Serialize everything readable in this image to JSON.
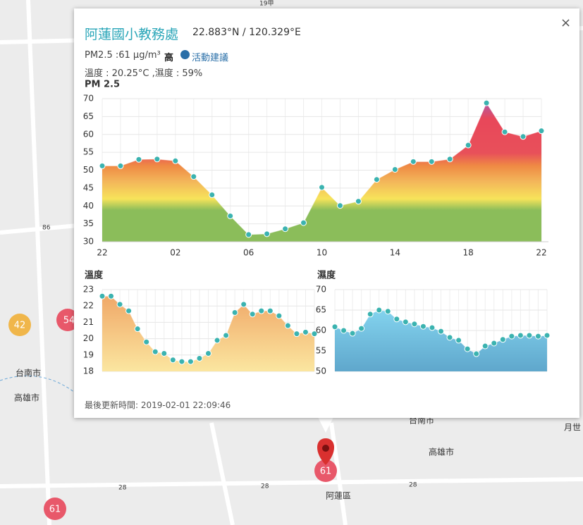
{
  "map": {
    "markers": [
      "42",
      "54",
      "61"
    ],
    "pin": "61",
    "labels": [
      "台南市",
      "高雄市",
      "阿蓮區",
      "台南市",
      "高雄市",
      "月世",
      "28",
      "28",
      "28",
      "86",
      "19甲"
    ]
  },
  "popup": {
    "title": "阿蓮國小教務處",
    "coords": "22.883°N / 120.329°E",
    "close": "×",
    "pm_text": "PM2.5 :61 μg/m³",
    "level": "高",
    "advice": "活動建議",
    "weather": "溫度 : 20.25°C ,濕度 : 59%",
    "updated": "最後更新時間: 2019-02-01 22:09:46"
  },
  "chart_data": [
    {
      "type": "area",
      "title": "PM 2.5",
      "color": "#3bb3b0",
      "categories": [
        "22",
        null,
        null,
        null,
        "02",
        null,
        null,
        null,
        "06",
        null,
        null,
        null,
        "10",
        null,
        null,
        null,
        "14",
        null,
        null,
        null,
        "18",
        null,
        null,
        null,
        "22"
      ],
      "values": [
        51.2,
        51.2,
        53,
        53.1,
        52.6,
        48.2,
        43.1,
        37.2,
        32,
        32.2,
        33.6,
        35.3,
        45.2,
        40.1,
        41.3,
        47.4,
        50.2,
        52.4,
        52.4,
        53.1,
        57,
        68.8,
        60.7,
        59.4,
        61
      ],
      "ylim": [
        30,
        70
      ],
      "yticks": [
        30,
        35,
        40,
        45,
        50,
        55,
        60,
        65,
        70
      ],
      "grid": true
    },
    {
      "type": "area",
      "title": "溫度",
      "color": "#3bb3b0",
      "values": [
        22.6,
        22.6,
        22.1,
        21.7,
        20.6,
        19.8,
        19.2,
        19.1,
        18.7,
        18.6,
        18.6,
        18.8,
        19.1,
        19.9,
        20.2,
        21.6,
        22.1,
        21.5,
        21.7,
        21.7,
        21.4,
        20.8,
        20.3,
        20.4,
        20.3
      ],
      "ylim": [
        18,
        23
      ],
      "yticks": [
        18,
        19,
        20,
        21,
        22,
        23
      ],
      "grid": true
    },
    {
      "type": "area",
      "title": "濕度",
      "color": "#3bb3b0",
      "values": [
        60.9,
        60,
        59.3,
        60.5,
        64,
        65,
        64.7,
        62.8,
        62.1,
        61.6,
        61,
        60.7,
        59.8,
        58.3,
        57.6,
        55.5,
        54.3,
        56.2,
        56.9,
        57.8,
        58.6,
        58.8,
        58.8,
        58.6,
        58.8
      ],
      "ylim": [
        50,
        70
      ],
      "yticks": [
        50,
        55,
        60,
        65,
        70
      ],
      "grid": true
    }
  ]
}
